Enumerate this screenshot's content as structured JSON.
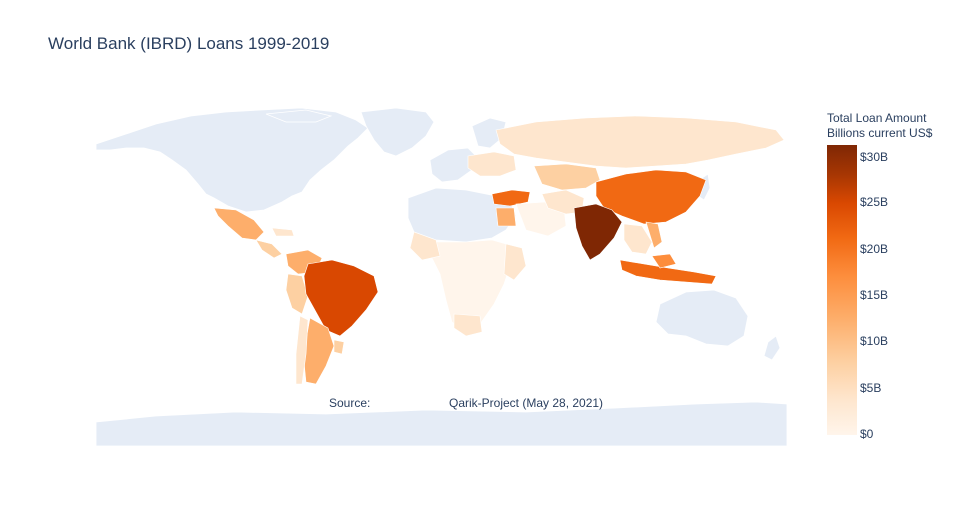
{
  "title": "World Bank (IBRD) Loans 1999-2019",
  "legend": {
    "title_line1": "Total Loan Amount",
    "title_line2": "Billions current US$",
    "ticks": [
      "$30B",
      "$25B",
      "$20B",
      "$15B",
      "$10B",
      "$5B",
      "$0"
    ],
    "tick_values": [
      30,
      25,
      20,
      15,
      10,
      5,
      0
    ],
    "max": 31,
    "min": 0,
    "colorscale": [
      "#fff5eb",
      "#fee6ce",
      "#fdd0a2",
      "#fdae6b",
      "#fd8d3c",
      "#f16913",
      "#d94801",
      "#a63603",
      "#7f2704"
    ]
  },
  "annotation": {
    "source_label": "Source:",
    "source_text": "Qarik-Project (May 28, 2021)"
  },
  "colors": {
    "land_no_data": "#e5ecf6",
    "border": "#ffffff",
    "text": "#2a3f5f"
  }
}
